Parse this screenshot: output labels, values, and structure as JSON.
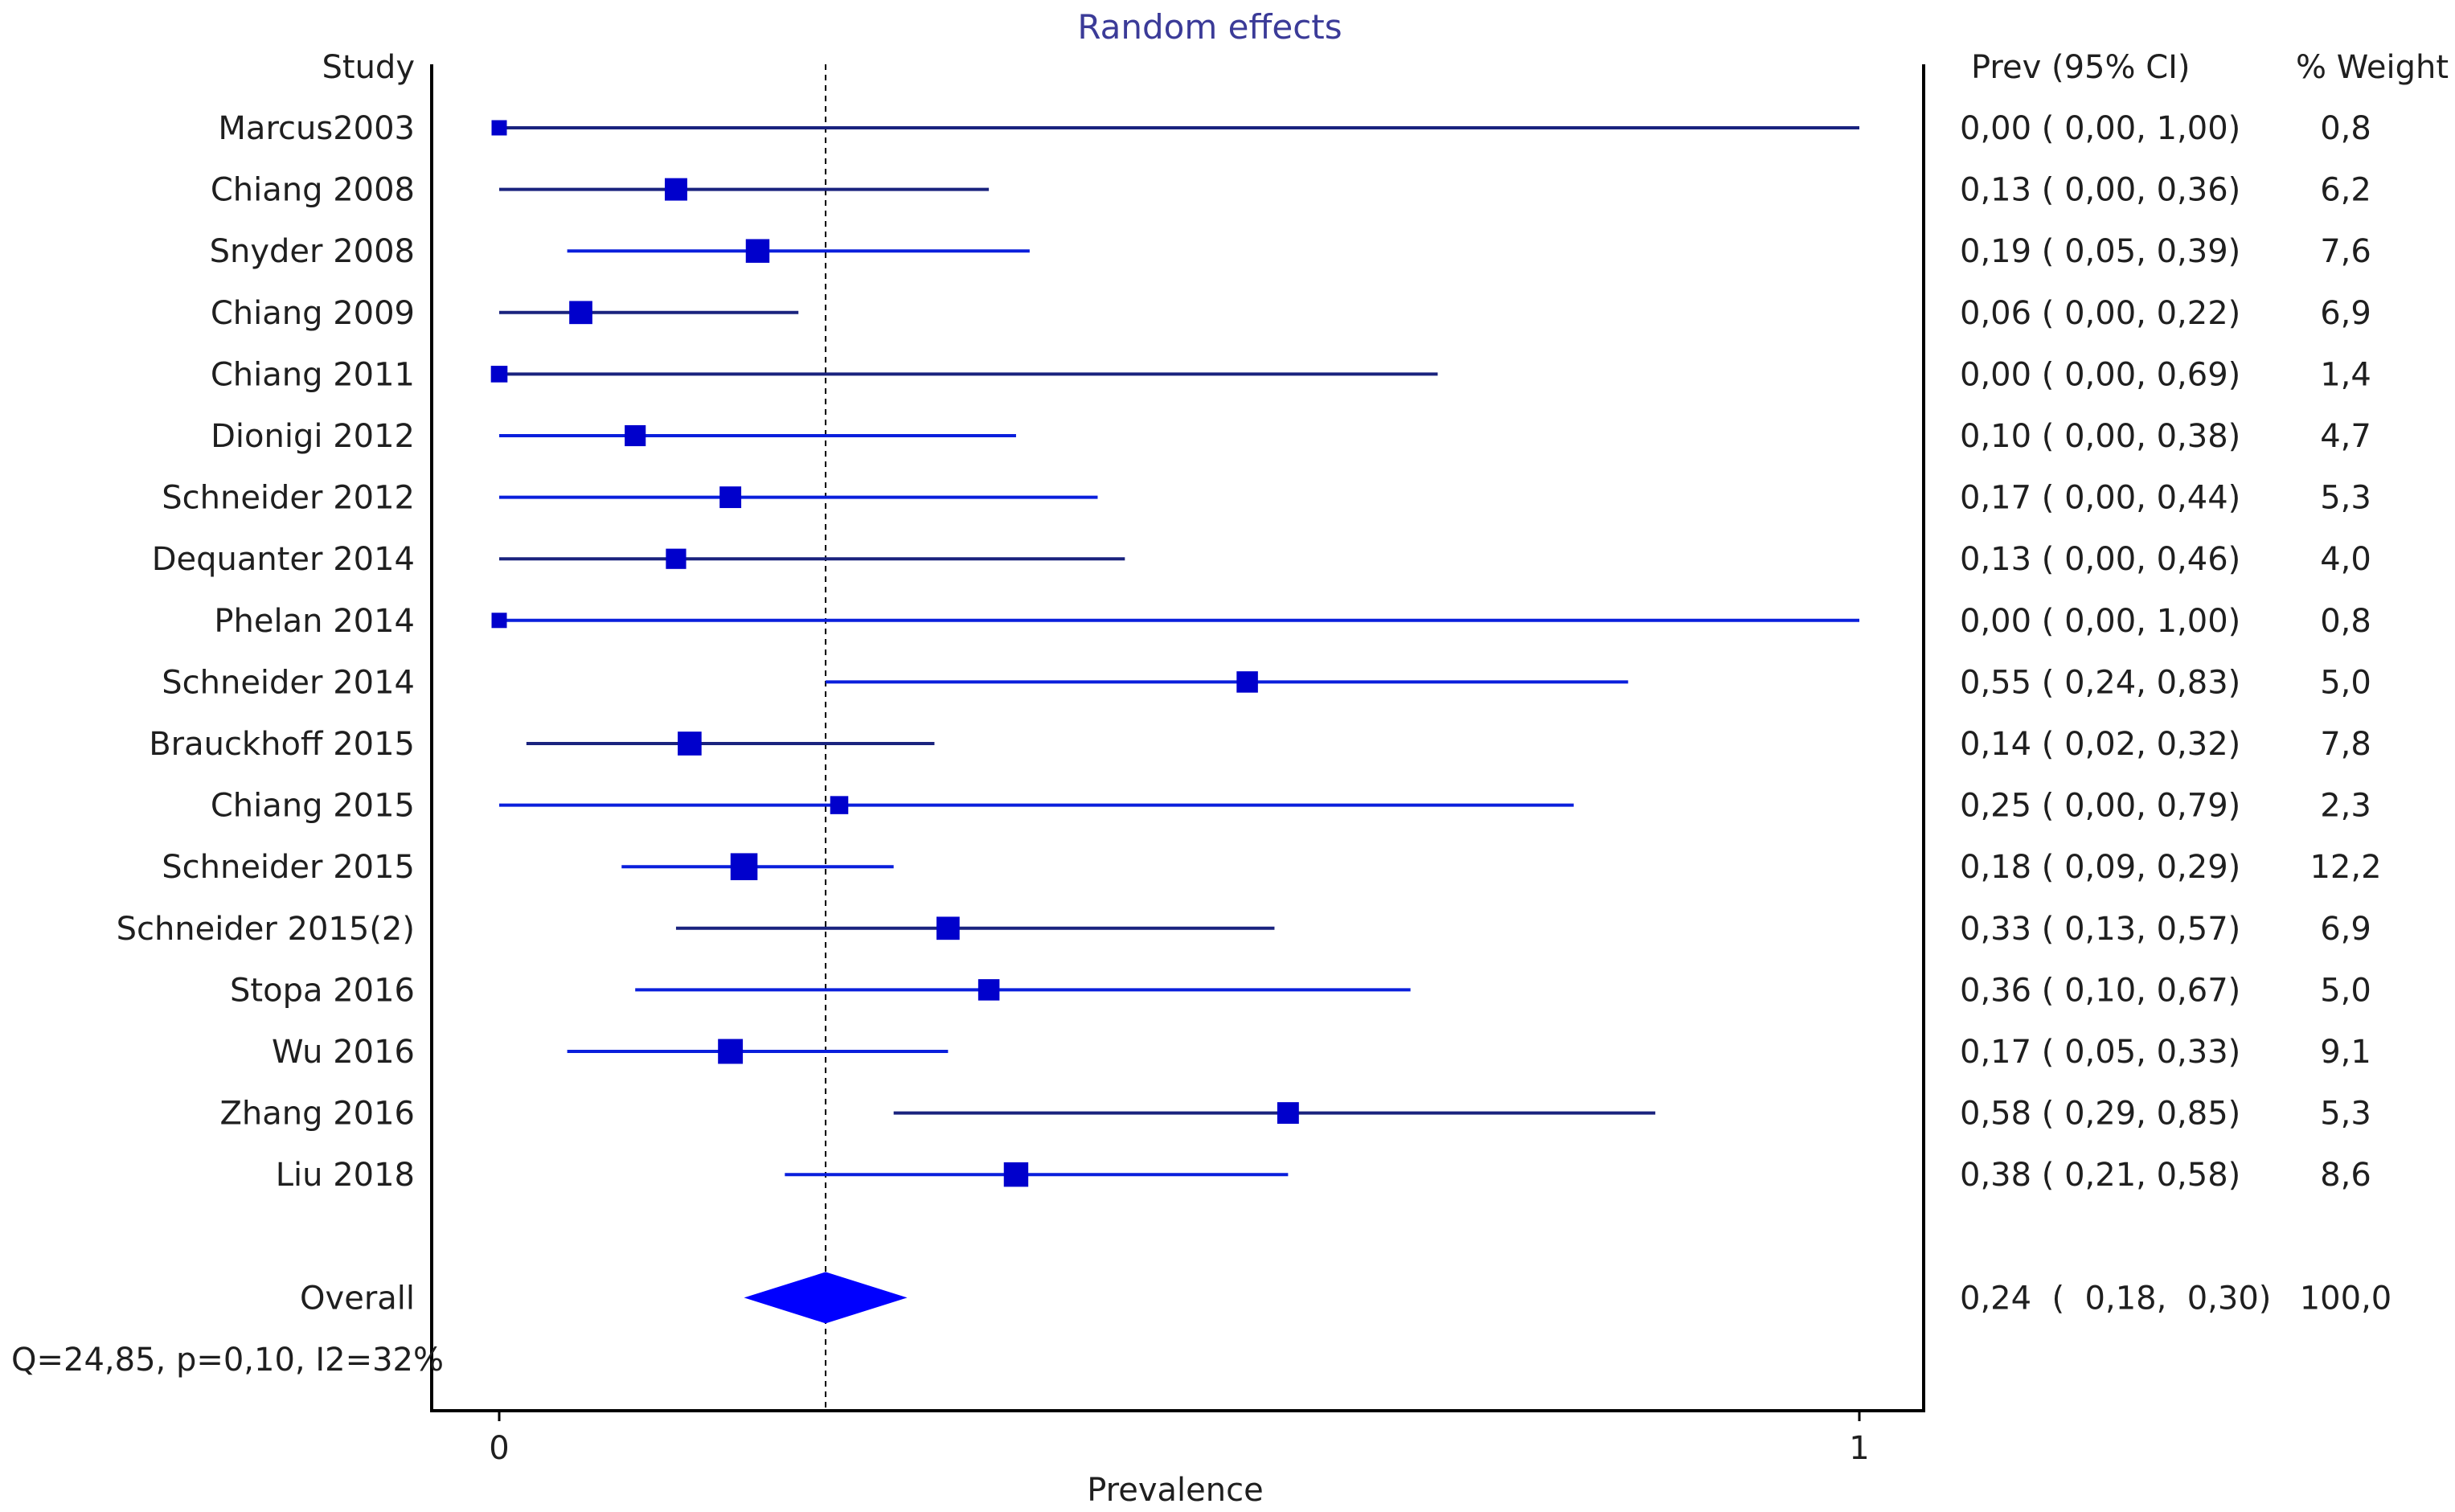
{
  "chart_data": {
    "type": "forest",
    "title": "Random effects",
    "xlabel": "Prevalence",
    "xlim": [
      0,
      1
    ],
    "x_ticks": [
      {
        "value": 0,
        "label": "0"
      },
      {
        "value": 1,
        "label": "1"
      }
    ],
    "reference_line": 0.24,
    "column_headers": {
      "study": "Study",
      "estimate": "Prev (95% CI)",
      "weight": "% Weight"
    },
    "colors": {
      "marker": "#0000cc",
      "ci_dark": "#1a237e",
      "ci_bright": "#0a1fdc",
      "axis": "#000000",
      "title": "#3b3b98",
      "text": "#1f1f1f"
    },
    "studies": [
      {
        "name": "Marcus2003",
        "prev": 0.0,
        "lower": 0.0,
        "upper": 1.0,
        "weight": 0.8,
        "ci_text": "0,00  (  0,00,  1,00)",
        "weight_text": "0,8",
        "tone": "dark"
      },
      {
        "name": "Chiang 2008",
        "prev": 0.13,
        "lower": 0.0,
        "upper": 0.36,
        "weight": 6.2,
        "ci_text": "0,13  (  0,00,  0,36)",
        "weight_text": "6,2",
        "tone": "dark"
      },
      {
        "name": "Snyder 2008",
        "prev": 0.19,
        "lower": 0.05,
        "upper": 0.39,
        "weight": 7.6,
        "ci_text": "0,19  (  0,05,  0,39)",
        "weight_text": "7,6",
        "tone": "bright"
      },
      {
        "name": "Chiang 2009",
        "prev": 0.06,
        "lower": 0.0,
        "upper": 0.22,
        "weight": 6.9,
        "ci_text": "0,06  (  0,00,  0,22)",
        "weight_text": "6,9",
        "tone": "dark"
      },
      {
        "name": "Chiang 2011",
        "prev": 0.0,
        "lower": 0.0,
        "upper": 0.69,
        "weight": 1.4,
        "ci_text": "0,00  (  0,00,  0,69)",
        "weight_text": "1,4",
        "tone": "dark"
      },
      {
        "name": "Dionigi 2012",
        "prev": 0.1,
        "lower": 0.0,
        "upper": 0.38,
        "weight": 4.7,
        "ci_text": "0,10  (  0,00,  0,38)",
        "weight_text": "4,7",
        "tone": "bright"
      },
      {
        "name": "Schneider 2012",
        "prev": 0.17,
        "lower": 0.0,
        "upper": 0.44,
        "weight": 5.3,
        "ci_text": "0,17  (  0,00,  0,44)",
        "weight_text": "5,3",
        "tone": "bright"
      },
      {
        "name": "Dequanter 2014",
        "prev": 0.13,
        "lower": 0.0,
        "upper": 0.46,
        "weight": 4.0,
        "ci_text": "0,13  (  0,00,  0,46)",
        "weight_text": "4,0",
        "tone": "dark"
      },
      {
        "name": "Phelan 2014",
        "prev": 0.0,
        "lower": 0.0,
        "upper": 1.0,
        "weight": 0.8,
        "ci_text": "0,00  (  0,00,  1,00)",
        "weight_text": "0,8",
        "tone": "bright"
      },
      {
        "name": "Schneider 2014",
        "prev": 0.55,
        "lower": 0.24,
        "upper": 0.83,
        "weight": 5.0,
        "ci_text": "0,55  (  0,24,  0,83)",
        "weight_text": "5,0",
        "tone": "bright"
      },
      {
        "name": "Brauckhoff 2015",
        "prev": 0.14,
        "lower": 0.02,
        "upper": 0.32,
        "weight": 7.8,
        "ci_text": "0,14  (  0,02,  0,32)",
        "weight_text": "7,8",
        "tone": "dark"
      },
      {
        "name": "Chiang 2015",
        "prev": 0.25,
        "lower": 0.0,
        "upper": 0.79,
        "weight": 2.3,
        "ci_text": "0,25  (  0,00,  0,79)",
        "weight_text": "2,3",
        "tone": "bright"
      },
      {
        "name": "Schneider 2015",
        "prev": 0.18,
        "lower": 0.09,
        "upper": 0.29,
        "weight": 12.2,
        "ci_text": "0,18  (  0,09,  0,29)",
        "weight_text": "12,2",
        "tone": "bright"
      },
      {
        "name": "Schneider 2015(2)",
        "prev": 0.33,
        "lower": 0.13,
        "upper": 0.57,
        "weight": 6.9,
        "ci_text": "0,33  (  0,13,  0,57)",
        "weight_text": "6,9",
        "tone": "dark"
      },
      {
        "name": "Stopa 2016",
        "prev": 0.36,
        "lower": 0.1,
        "upper": 0.67,
        "weight": 5.0,
        "ci_text": "0,36  (  0,10,  0,67)",
        "weight_text": "5,0",
        "tone": "bright"
      },
      {
        "name": "Wu 2016",
        "prev": 0.17,
        "lower": 0.05,
        "upper": 0.33,
        "weight": 9.1,
        "ci_text": "0,17  (  0,05,  0,33)",
        "weight_text": "9,1",
        "tone": "bright"
      },
      {
        "name": "Zhang 2016",
        "prev": 0.58,
        "lower": 0.29,
        "upper": 0.85,
        "weight": 5.3,
        "ci_text": "0,58  (  0,29,  0,85)",
        "weight_text": "5,3",
        "tone": "dark"
      },
      {
        "name": "Liu 2018",
        "prev": 0.38,
        "lower": 0.21,
        "upper": 0.58,
        "weight": 8.6,
        "ci_text": "0,38  (  0,21,  0,58)",
        "weight_text": "8,6",
        "tone": "bright"
      }
    ],
    "overall": {
      "name": "Overall",
      "prev": 0.24,
      "lower": 0.18,
      "upper": 0.3,
      "weight": 100.0,
      "ci_text": "0,24  (  0,18,  0,30)",
      "weight_text": "100,0"
    },
    "heterogeneity": "Q=24,85, p=0,10, I2=32%"
  }
}
